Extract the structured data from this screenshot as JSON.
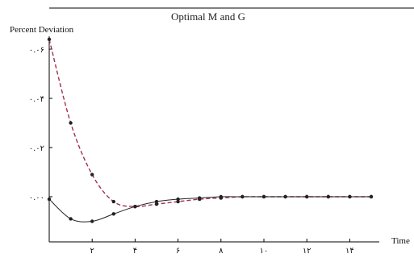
{
  "chart_data": {
    "type": "line",
    "title": "Optimal M and G",
    "ylabel": "Percent Deviation",
    "xlabel": "Time",
    "xlim": [
      0,
      15
    ],
    "ylim": [
      -0.02,
      0.07
    ],
    "x_ticks": [
      2,
      4,
      6,
      8,
      10,
      12,
      14
    ],
    "x_tick_labels": [
      "۲",
      "۴",
      "۶",
      "۸",
      "۱۰",
      "۱۲",
      "۱۴"
    ],
    "y_ticks": [
      0.0,
      0.02,
      0.04,
      0.06
    ],
    "y_tick_labels": [
      "۰.۰۰",
      "۰.۰۲",
      "۰.۰۴",
      "۰.۰۶"
    ],
    "series": [
      {
        "style": "dashed",
        "color": "#a0304a",
        "x": [
          0,
          1,
          2,
          3,
          4,
          5,
          6,
          7,
          8,
          9,
          10,
          11,
          12,
          13,
          14,
          15
        ],
        "values": [
          0.064,
          0.03,
          0.009,
          -0.002,
          -0.004,
          -0.003,
          -0.002,
          -0.001,
          -0.0005,
          0.0,
          0.0,
          0.0,
          0.0,
          0.0,
          0.0,
          0.0
        ]
      },
      {
        "style": "solid",
        "color": "#222222",
        "x": [
          0,
          1,
          2,
          3,
          4,
          5,
          6,
          7,
          8,
          9,
          10,
          11,
          12,
          13,
          14,
          15
        ],
        "values": [
          -0.001,
          -0.009,
          -0.01,
          -0.007,
          -0.004,
          -0.002,
          -0.001,
          -0.0005,
          0.0,
          0.0,
          0.0,
          0.0,
          0.0,
          0.0,
          0.0,
          0.0
        ]
      }
    ]
  }
}
